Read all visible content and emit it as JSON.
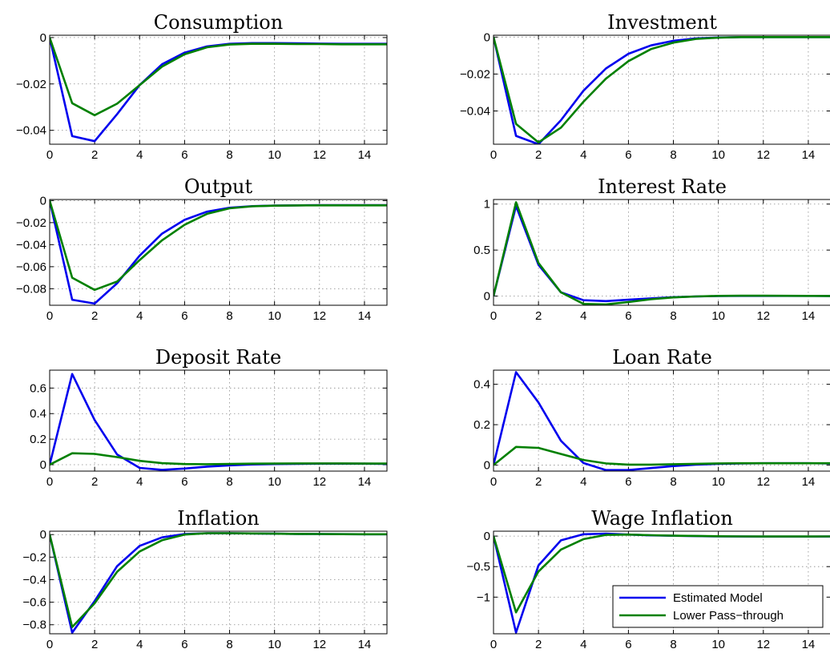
{
  "chart_data": [
    {
      "type": "line",
      "title": "Consumption",
      "x": [
        0,
        1,
        2,
        3,
        4,
        5,
        6,
        7,
        8,
        9,
        10,
        11,
        12,
        13,
        14,
        15
      ],
      "xlim": [
        0,
        15
      ],
      "xticks": [
        0,
        2,
        4,
        6,
        8,
        10,
        12,
        14
      ],
      "ylim": [
        -0.046,
        0.001
      ],
      "yticks": [
        0,
        -0.02,
        -0.04
      ],
      "yticklabels": [
        "0",
        "−0.02",
        "−0.04"
      ],
      "grid": true,
      "series": [
        {
          "name": "Estimated Model",
          "color": "#0000ee",
          "values": [
            0,
            -0.0425,
            -0.0447,
            -0.033,
            -0.0205,
            -0.0115,
            -0.0065,
            -0.0038,
            -0.0027,
            -0.0024,
            -0.0024,
            -0.0025,
            -0.0026,
            -0.0027,
            -0.0027,
            -0.0027
          ]
        },
        {
          "name": "Lower Pass-through",
          "color": "#008000",
          "values": [
            0,
            -0.0283,
            -0.0335,
            -0.0285,
            -0.0205,
            -0.0125,
            -0.0072,
            -0.0042,
            -0.003,
            -0.0027,
            -0.0027,
            -0.0028,
            -0.0028,
            -0.0029,
            -0.0029,
            -0.0029
          ]
        }
      ]
    },
    {
      "type": "line",
      "title": "Investment",
      "x": [
        0,
        1,
        2,
        3,
        4,
        5,
        6,
        7,
        8,
        9,
        10,
        11,
        12,
        13,
        14,
        15
      ],
      "xlim": [
        0,
        15
      ],
      "xticks": [
        0,
        2,
        4,
        6,
        8,
        10,
        12,
        14
      ],
      "ylim": [
        -0.058,
        0.001
      ],
      "yticks": [
        0,
        -0.02,
        -0.04
      ],
      "yticklabels": [
        "0",
        "−0.02",
        "−0.04"
      ],
      "grid": true,
      "series": [
        {
          "name": "Estimated Model",
          "color": "#0000ee",
          "values": [
            0,
            -0.0535,
            -0.058,
            -0.045,
            -0.029,
            -0.017,
            -0.009,
            -0.0045,
            -0.002,
            -0.0007,
            -0.0002,
            0,
            0,
            0,
            0,
            0
          ]
        },
        {
          "name": "Lower Pass-through",
          "color": "#008000",
          "values": [
            0,
            -0.047,
            -0.057,
            -0.049,
            -0.035,
            -0.0225,
            -0.013,
            -0.0065,
            -0.003,
            -0.001,
            -0.0003,
            0,
            0,
            0,
            0,
            0
          ]
        }
      ]
    },
    {
      "type": "line",
      "title": "Output",
      "x": [
        0,
        1,
        2,
        3,
        4,
        5,
        6,
        7,
        8,
        9,
        10,
        11,
        12,
        13,
        14,
        15
      ],
      "xlim": [
        0,
        15
      ],
      "xticks": [
        0,
        2,
        4,
        6,
        8,
        10,
        12,
        14
      ],
      "ylim": [
        -0.095,
        0.001
      ],
      "yticks": [
        0,
        -0.02,
        -0.04,
        -0.06,
        -0.08
      ],
      "yticklabels": [
        "0",
        "−0.02",
        "−0.04",
        "−0.06",
        "−0.08"
      ],
      "grid": true,
      "series": [
        {
          "name": "Estimated Model",
          "color": "#0000ee",
          "values": [
            0,
            -0.09,
            -0.0935,
            -0.075,
            -0.05,
            -0.03,
            -0.0175,
            -0.01,
            -0.0065,
            -0.005,
            -0.0045,
            -0.0043,
            -0.0042,
            -0.0042,
            -0.0042,
            -0.0042
          ]
        },
        {
          "name": "Lower Pass-through",
          "color": "#008000",
          "values": [
            0,
            -0.07,
            -0.081,
            -0.0735,
            -0.054,
            -0.036,
            -0.022,
            -0.012,
            -0.007,
            -0.0052,
            -0.0046,
            -0.0044,
            -0.0043,
            -0.0043,
            -0.0043,
            -0.0043
          ]
        }
      ]
    },
    {
      "type": "line",
      "title": "Interest Rate",
      "x": [
        0,
        1,
        2,
        3,
        4,
        5,
        6,
        7,
        8,
        9,
        10,
        11,
        12,
        13,
        14,
        15
      ],
      "xlim": [
        0,
        15
      ],
      "xticks": [
        0,
        2,
        4,
        6,
        8,
        10,
        12,
        14
      ],
      "ylim": [
        -0.1,
        1.05
      ],
      "yticks": [
        0,
        0.5,
        1
      ],
      "yticklabels": [
        "0",
        "0.5",
        "1"
      ],
      "grid": true,
      "series": [
        {
          "name": "Estimated Model",
          "color": "#0000ee",
          "values": [
            0,
            0.98,
            0.34,
            0.04,
            -0.045,
            -0.055,
            -0.04,
            -0.025,
            -0.012,
            -0.004,
            0,
            0.002,
            0.002,
            0.002,
            0.002,
            0.001
          ]
        },
        {
          "name": "Lower Pass-through",
          "color": "#008000",
          "values": [
            0,
            1.02,
            0.36,
            0.04,
            -0.085,
            -0.09,
            -0.065,
            -0.035,
            -0.015,
            -0.004,
            0.002,
            0.004,
            0.004,
            0.003,
            0.002,
            0.001
          ]
        }
      ]
    },
    {
      "type": "line",
      "title": "Deposit Rate",
      "x": [
        0,
        1,
        2,
        3,
        4,
        5,
        6,
        7,
        8,
        9,
        10,
        11,
        12,
        13,
        14,
        15
      ],
      "xlim": [
        0,
        15
      ],
      "xticks": [
        0,
        2,
        4,
        6,
        8,
        10,
        12,
        14
      ],
      "ylim": [
        -0.05,
        0.74
      ],
      "yticks": [
        0,
        0.2,
        0.4,
        0.6
      ],
      "yticklabels": [
        "0",
        "0.2",
        "0.4",
        "0.6"
      ],
      "grid": true,
      "series": [
        {
          "name": "Estimated Model",
          "color": "#0000ee",
          "values": [
            0,
            0.71,
            0.35,
            0.08,
            -0.025,
            -0.04,
            -0.03,
            -0.015,
            -0.005,
            0.002,
            0.005,
            0.007,
            0.008,
            0.008,
            0.008,
            0.007
          ]
        },
        {
          "name": "Lower Pass-through",
          "color": "#008000",
          "values": [
            0,
            0.09,
            0.085,
            0.06,
            0.03,
            0.012,
            0.005,
            0.004,
            0.006,
            0.008,
            0.009,
            0.01,
            0.01,
            0.01,
            0.009,
            0.009
          ]
        }
      ]
    },
    {
      "type": "line",
      "title": "Loan Rate",
      "x": [
        0,
        1,
        2,
        3,
        4,
        5,
        6,
        7,
        8,
        9,
        10,
        11,
        12,
        13,
        14,
        15
      ],
      "xlim": [
        0,
        15
      ],
      "xticks": [
        0,
        2,
        4,
        6,
        8,
        10,
        12,
        14
      ],
      "ylim": [
        -0.03,
        0.47
      ],
      "yticks": [
        0,
        0.2,
        0.4
      ],
      "yticklabels": [
        "0",
        "0.2",
        "0.4"
      ],
      "grid": true,
      "series": [
        {
          "name": "Estimated Model",
          "color": "#0000ee",
          "values": [
            0,
            0.46,
            0.31,
            0.12,
            0.01,
            -0.025,
            -0.025,
            -0.015,
            -0.005,
            0.002,
            0.006,
            0.008,
            0.009,
            0.009,
            0.009,
            0.008
          ]
        },
        {
          "name": "Lower Pass-through",
          "color": "#008000",
          "values": [
            0,
            0.09,
            0.085,
            0.055,
            0.025,
            0.008,
            0.002,
            0.002,
            0.004,
            0.006,
            0.008,
            0.009,
            0.009,
            0.009,
            0.009,
            0.009
          ]
        }
      ]
    },
    {
      "type": "line",
      "title": "Inflation",
      "x": [
        0,
        1,
        2,
        3,
        4,
        5,
        6,
        7,
        8,
        9,
        10,
        11,
        12,
        13,
        14,
        15
      ],
      "xlim": [
        0,
        15
      ],
      "xticks": [
        0,
        2,
        4,
        6,
        8,
        10,
        12,
        14
      ],
      "ylim": [
        -0.88,
        0.03
      ],
      "yticks": [
        0,
        -0.2,
        -0.4,
        -0.6,
        -0.8
      ],
      "yticklabels": [
        "0",
        "−0.2",
        "−0.4",
        "−0.6",
        "−0.8"
      ],
      "grid": true,
      "series": [
        {
          "name": "Estimated Model",
          "color": "#0000ee",
          "values": [
            0,
            -0.87,
            -0.59,
            -0.28,
            -0.1,
            -0.025,
            0.005,
            0.012,
            0.012,
            0.01,
            0.008,
            0.006,
            0.005,
            0.004,
            0.003,
            0.003
          ]
        },
        {
          "name": "Lower Pass-through",
          "color": "#008000",
          "values": [
            0,
            -0.82,
            -0.61,
            -0.33,
            -0.15,
            -0.05,
            0,
            0.012,
            0.012,
            0.01,
            0.008,
            0.006,
            0.005,
            0.004,
            0.003,
            0.003
          ]
        }
      ]
    },
    {
      "type": "line",
      "title": "Wage Inflation",
      "x": [
        0,
        1,
        2,
        3,
        4,
        5,
        6,
        7,
        8,
        9,
        10,
        11,
        12,
        13,
        14,
        15
      ],
      "xlim": [
        0,
        15
      ],
      "xticks": [
        0,
        2,
        4,
        6,
        8,
        10,
        12,
        14
      ],
      "ylim": [
        -1.6,
        0.08
      ],
      "yticks": [
        0,
        -0.5,
        -1
      ],
      "yticklabels": [
        "0",
        "−0.5",
        "−1"
      ],
      "grid": true,
      "series": [
        {
          "name": "Estimated Model",
          "color": "#0000ee",
          "values": [
            0,
            -1.58,
            -0.48,
            -0.07,
            0.03,
            0.04,
            0.025,
            0.012,
            0.005,
            0,
            -0.005,
            -0.007,
            -0.008,
            -0.008,
            -0.008,
            -0.007
          ]
        },
        {
          "name": "Lower Pass-through",
          "color": "#008000",
          "values": [
            0,
            -1.25,
            -0.58,
            -0.22,
            -0.05,
            0.02,
            0.025,
            0.015,
            0.007,
            0.002,
            -0.003,
            -0.005,
            -0.006,
            -0.006,
            -0.006,
            -0.005
          ]
        }
      ]
    }
  ],
  "legend": {
    "placement": "bottom-right of Wage Inflation panel",
    "entries": [
      {
        "label": "Estimated Model",
        "color": "#0000ee"
      },
      {
        "label": "Lower Pass−through",
        "color": "#008000"
      }
    ]
  }
}
